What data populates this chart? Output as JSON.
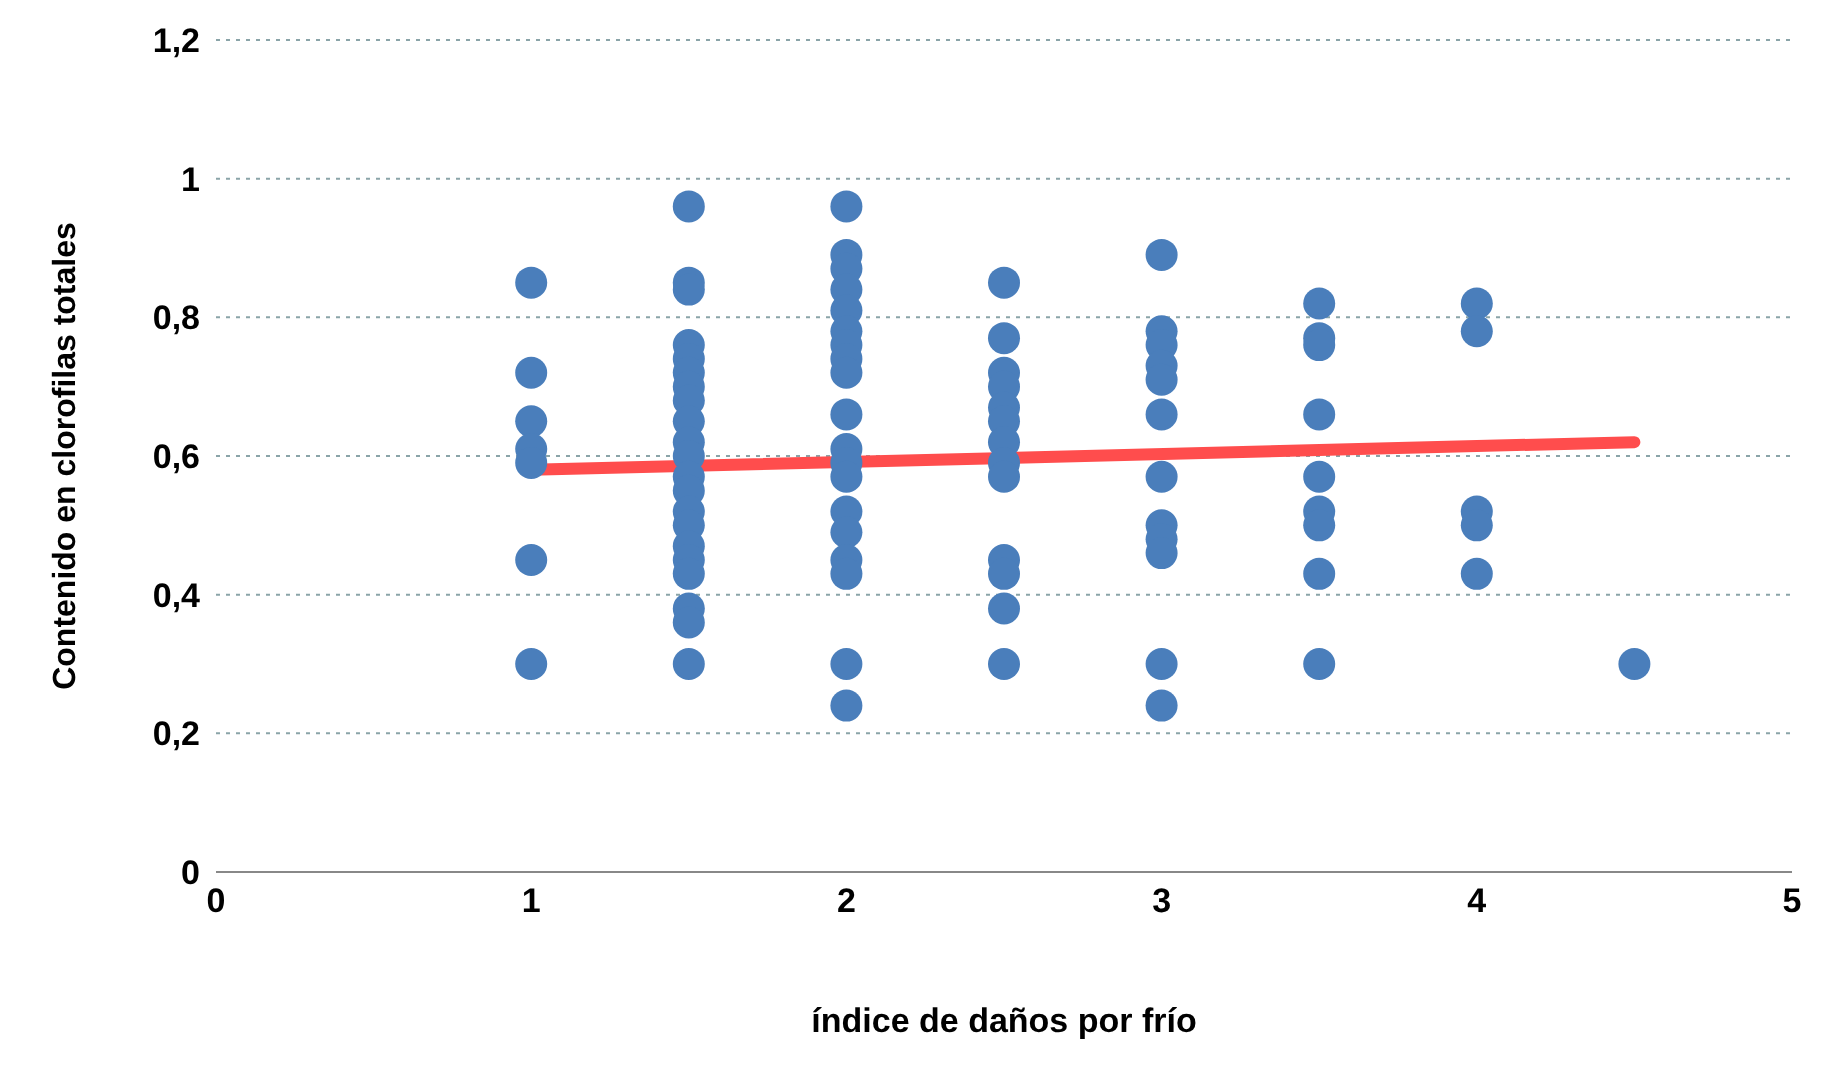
{
  "chart_data": {
    "type": "scatter",
    "xlabel": "índice de daños por frío",
    "ylabel": "Contenido en clorofilas  totales",
    "xlim": [
      0,
      5
    ],
    "xticks": [
      0,
      1,
      2,
      3,
      4,
      5
    ],
    "ylim": [
      0,
      1.2
    ],
    "yticks": [
      {
        "value": 0,
        "label": "0"
      },
      {
        "value": 0.2,
        "label": "0,2"
      },
      {
        "value": 0.4,
        "label": "0,4"
      },
      {
        "value": 0.6,
        "label": "0,6"
      },
      {
        "value": 0.8,
        "label": "0,8"
      },
      {
        "value": 1,
        "label": "1"
      },
      {
        "value": 1.2,
        "label": "1,2"
      }
    ],
    "grid": "y",
    "series": [
      {
        "marker": "circle",
        "color": "#4a7ebb",
        "x": [
          1,
          1,
          1,
          1,
          1,
          1,
          1,
          1.5,
          1.5,
          1.5,
          1.5,
          1.5,
          1.5,
          1.5,
          1.5,
          1.5,
          1.5,
          1.5,
          1.5,
          1.5,
          1.5,
          1.5,
          1.5,
          1.5,
          1.5,
          1.5,
          1.5,
          1.5,
          2,
          2,
          2,
          2,
          2,
          2,
          2,
          2,
          2,
          2,
          2,
          2,
          2,
          2,
          2,
          2,
          2,
          2,
          2,
          2.5,
          2.5,
          2.5,
          2.5,
          2.5,
          2.5,
          2.5,
          2.5,
          2.5,
          2.5,
          2.5,
          2.5,
          2.5,
          3,
          3,
          3,
          3,
          3,
          3,
          3,
          3,
          3,
          3,
          3,
          3,
          3.5,
          3.5,
          3.5,
          3.5,
          3.5,
          3.5,
          3.5,
          3.5,
          3.5,
          4,
          4,
          4,
          4,
          4,
          4.5
        ],
        "values": [
          0.85,
          0.72,
          0.65,
          0.61,
          0.59,
          0.45,
          0.3,
          0.96,
          0.85,
          0.84,
          0.76,
          0.74,
          0.72,
          0.7,
          0.68,
          0.65,
          0.62,
          0.6,
          0.57,
          0.55,
          0.52,
          0.5,
          0.47,
          0.45,
          0.43,
          0.38,
          0.36,
          0.3,
          0.96,
          0.89,
          0.87,
          0.84,
          0.81,
          0.78,
          0.76,
          0.74,
          0.72,
          0.66,
          0.61,
          0.59,
          0.57,
          0.52,
          0.49,
          0.45,
          0.43,
          0.3,
          0.24,
          0.85,
          0.77,
          0.72,
          0.7,
          0.67,
          0.65,
          0.62,
          0.59,
          0.57,
          0.45,
          0.43,
          0.38,
          0.3,
          0.89,
          0.78,
          0.76,
          0.73,
          0.71,
          0.66,
          0.57,
          0.5,
          0.48,
          0.46,
          0.3,
          0.24,
          0.82,
          0.77,
          0.76,
          0.66,
          0.57,
          0.52,
          0.5,
          0.43,
          0.3,
          0.82,
          0.78,
          0.52,
          0.5,
          0.43,
          0.3
        ]
      },
      {
        "type": "line",
        "color": "#ff4d4d",
        "x": [
          1,
          4.5
        ],
        "values": [
          0.58,
          0.62
        ]
      }
    ]
  }
}
